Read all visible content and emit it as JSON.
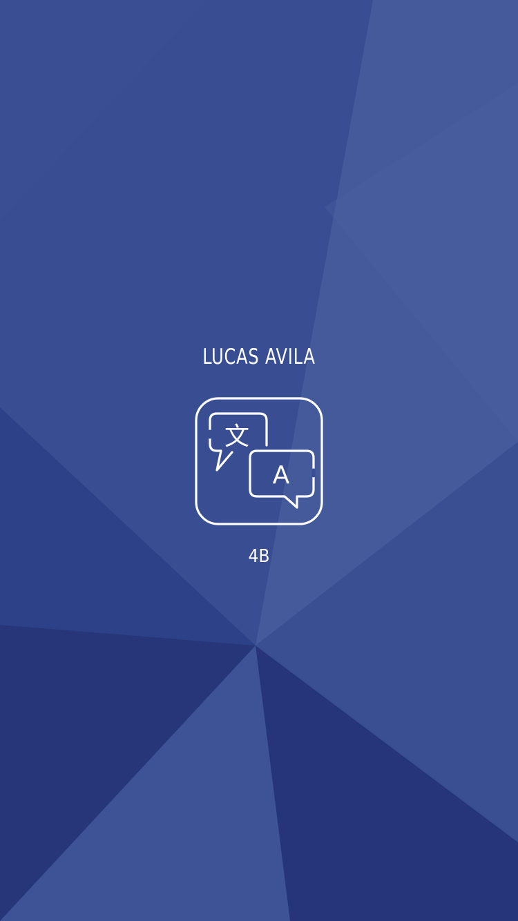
{
  "colors": {
    "background": "#3a4f93",
    "text": "#ffffff"
  },
  "splash": {
    "user_name": "LUCAS AVILA",
    "icon": "translate-icon",
    "icon_glyph_source": "文",
    "icon_glyph_target": "A",
    "level_label": "4B"
  }
}
